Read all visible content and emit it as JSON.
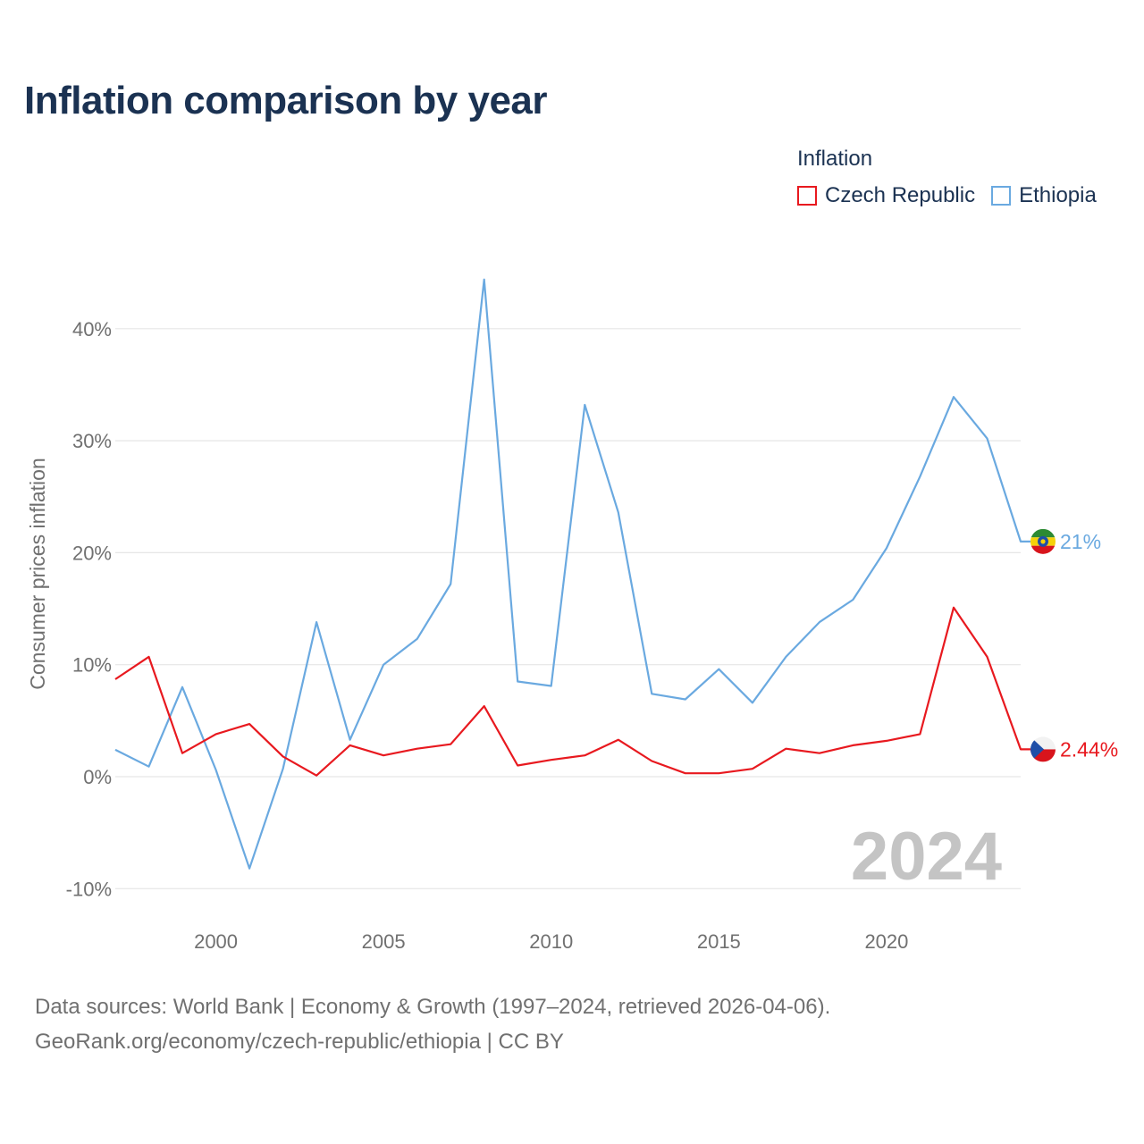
{
  "title": "Inflation comparison by year",
  "legend": {
    "title": "Inflation",
    "items": [
      {
        "label": "Czech Republic",
        "color": "#e8191f"
      },
      {
        "label": "Ethiopia",
        "color": "#6aa9e0"
      }
    ]
  },
  "source": {
    "line1": "Data sources: World Bank | Economy & Growth (1997–2024, retrieved 2026-04-06).",
    "line2": "GeoRank.org/economy/czech-republic/ethiopia | CC BY"
  },
  "chart_data": {
    "type": "line",
    "title": "Inflation comparison by year",
    "xlabel": "",
    "ylabel": "Consumer prices inflation",
    "xlim": [
      1997,
      2024
    ],
    "ylim": [
      -10,
      45
    ],
    "yticks": [
      -10,
      0,
      10,
      20,
      30,
      40
    ],
    "ytick_labels": [
      "-10%",
      "0%",
      "10%",
      "20%",
      "30%",
      "40%"
    ],
    "xticks": [
      2000,
      2005,
      2010,
      2015,
      2020
    ],
    "xtick_labels": [
      "2000",
      "2005",
      "2010",
      "2015",
      "2020"
    ],
    "grid": true,
    "legend_position": "top-right",
    "watermark_year": "2024",
    "x": [
      1997,
      1998,
      1999,
      2000,
      2001,
      2002,
      2003,
      2004,
      2005,
      2006,
      2007,
      2008,
      2009,
      2010,
      2011,
      2012,
      2013,
      2014,
      2015,
      2016,
      2017,
      2018,
      2019,
      2020,
      2021,
      2022,
      2023,
      2024
    ],
    "series": [
      {
        "name": "Czech Republic",
        "color": "#e8191f",
        "end_label": "2.44%",
        "flag": "czech-flag-icon",
        "values": [
          8.7,
          10.7,
          2.1,
          3.8,
          4.7,
          1.8,
          0.1,
          2.8,
          1.9,
          2.5,
          2.9,
          6.3,
          1.0,
          1.5,
          1.9,
          3.3,
          1.4,
          0.3,
          0.3,
          0.7,
          2.5,
          2.1,
          2.8,
          3.2,
          3.8,
          15.1,
          10.7,
          2.44
        ]
      },
      {
        "name": "Ethiopia",
        "color": "#6aa9e0",
        "end_label": "21%",
        "flag": "ethiopia-flag-icon",
        "values": [
          2.4,
          0.9,
          8.0,
          0.6,
          -8.2,
          0.7,
          13.8,
          3.3,
          10.0,
          12.3,
          17.2,
          44.4,
          8.5,
          8.1,
          33.2,
          23.6,
          7.4,
          6.9,
          9.6,
          6.6,
          10.7,
          13.8,
          15.8,
          20.4,
          26.8,
          33.9,
          30.2,
          21.0
        ]
      }
    ]
  }
}
